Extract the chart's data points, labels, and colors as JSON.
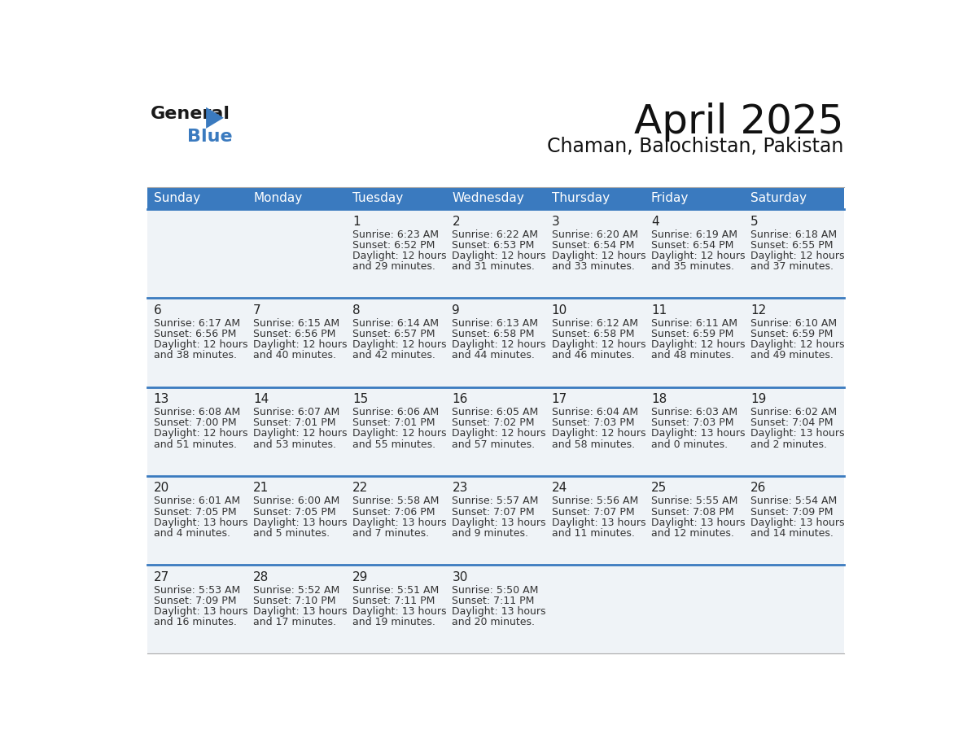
{
  "title": "April 2025",
  "subtitle": "Chaman, Balochistan, Pakistan",
  "header_color": "#3a7abf",
  "header_text_color": "#ffffff",
  "cell_bg": "#eff3f7",
  "border_color": "#3a7abf",
  "row_line_color": "#3a7abf",
  "day_names": [
    "Sunday",
    "Monday",
    "Tuesday",
    "Wednesday",
    "Thursday",
    "Friday",
    "Saturday"
  ],
  "days": [
    {
      "date": 1,
      "col": 2,
      "row": 0,
      "sunrise": "6:23 AM",
      "sunset": "6:52 PM",
      "daylight_h": "12 hours",
      "daylight_m": "29 minutes."
    },
    {
      "date": 2,
      "col": 3,
      "row": 0,
      "sunrise": "6:22 AM",
      "sunset": "6:53 PM",
      "daylight_h": "12 hours",
      "daylight_m": "31 minutes."
    },
    {
      "date": 3,
      "col": 4,
      "row": 0,
      "sunrise": "6:20 AM",
      "sunset": "6:54 PM",
      "daylight_h": "12 hours",
      "daylight_m": "33 minutes."
    },
    {
      "date": 4,
      "col": 5,
      "row": 0,
      "sunrise": "6:19 AM",
      "sunset": "6:54 PM",
      "daylight_h": "12 hours",
      "daylight_m": "35 minutes."
    },
    {
      "date": 5,
      "col": 6,
      "row": 0,
      "sunrise": "6:18 AM",
      "sunset": "6:55 PM",
      "daylight_h": "12 hours",
      "daylight_m": "37 minutes."
    },
    {
      "date": 6,
      "col": 0,
      "row": 1,
      "sunrise": "6:17 AM",
      "sunset": "6:56 PM",
      "daylight_h": "12 hours",
      "daylight_m": "38 minutes."
    },
    {
      "date": 7,
      "col": 1,
      "row": 1,
      "sunrise": "6:15 AM",
      "sunset": "6:56 PM",
      "daylight_h": "12 hours",
      "daylight_m": "40 minutes."
    },
    {
      "date": 8,
      "col": 2,
      "row": 1,
      "sunrise": "6:14 AM",
      "sunset": "6:57 PM",
      "daylight_h": "12 hours",
      "daylight_m": "42 minutes."
    },
    {
      "date": 9,
      "col": 3,
      "row": 1,
      "sunrise": "6:13 AM",
      "sunset": "6:58 PM",
      "daylight_h": "12 hours",
      "daylight_m": "44 minutes."
    },
    {
      "date": 10,
      "col": 4,
      "row": 1,
      "sunrise": "6:12 AM",
      "sunset": "6:58 PM",
      "daylight_h": "12 hours",
      "daylight_m": "46 minutes."
    },
    {
      "date": 11,
      "col": 5,
      "row": 1,
      "sunrise": "6:11 AM",
      "sunset": "6:59 PM",
      "daylight_h": "12 hours",
      "daylight_m": "48 minutes."
    },
    {
      "date": 12,
      "col": 6,
      "row": 1,
      "sunrise": "6:10 AM",
      "sunset": "6:59 PM",
      "daylight_h": "12 hours",
      "daylight_m": "49 minutes."
    },
    {
      "date": 13,
      "col": 0,
      "row": 2,
      "sunrise": "6:08 AM",
      "sunset": "7:00 PM",
      "daylight_h": "12 hours",
      "daylight_m": "51 minutes."
    },
    {
      "date": 14,
      "col": 1,
      "row": 2,
      "sunrise": "6:07 AM",
      "sunset": "7:01 PM",
      "daylight_h": "12 hours",
      "daylight_m": "53 minutes."
    },
    {
      "date": 15,
      "col": 2,
      "row": 2,
      "sunrise": "6:06 AM",
      "sunset": "7:01 PM",
      "daylight_h": "12 hours",
      "daylight_m": "55 minutes."
    },
    {
      "date": 16,
      "col": 3,
      "row": 2,
      "sunrise": "6:05 AM",
      "sunset": "7:02 PM",
      "daylight_h": "12 hours",
      "daylight_m": "57 minutes."
    },
    {
      "date": 17,
      "col": 4,
      "row": 2,
      "sunrise": "6:04 AM",
      "sunset": "7:03 PM",
      "daylight_h": "12 hours",
      "daylight_m": "58 minutes."
    },
    {
      "date": 18,
      "col": 5,
      "row": 2,
      "sunrise": "6:03 AM",
      "sunset": "7:03 PM",
      "daylight_h": "13 hours",
      "daylight_m": "0 minutes."
    },
    {
      "date": 19,
      "col": 6,
      "row": 2,
      "sunrise": "6:02 AM",
      "sunset": "7:04 PM",
      "daylight_h": "13 hours",
      "daylight_m": "2 minutes."
    },
    {
      "date": 20,
      "col": 0,
      "row": 3,
      "sunrise": "6:01 AM",
      "sunset": "7:05 PM",
      "daylight_h": "13 hours",
      "daylight_m": "4 minutes."
    },
    {
      "date": 21,
      "col": 1,
      "row": 3,
      "sunrise": "6:00 AM",
      "sunset": "7:05 PM",
      "daylight_h": "13 hours",
      "daylight_m": "5 minutes."
    },
    {
      "date": 22,
      "col": 2,
      "row": 3,
      "sunrise": "5:58 AM",
      "sunset": "7:06 PM",
      "daylight_h": "13 hours",
      "daylight_m": "7 minutes."
    },
    {
      "date": 23,
      "col": 3,
      "row": 3,
      "sunrise": "5:57 AM",
      "sunset": "7:07 PM",
      "daylight_h": "13 hours",
      "daylight_m": "9 minutes."
    },
    {
      "date": 24,
      "col": 4,
      "row": 3,
      "sunrise": "5:56 AM",
      "sunset": "7:07 PM",
      "daylight_h": "13 hours",
      "daylight_m": "11 minutes."
    },
    {
      "date": 25,
      "col": 5,
      "row": 3,
      "sunrise": "5:55 AM",
      "sunset": "7:08 PM",
      "daylight_h": "13 hours",
      "daylight_m": "12 minutes."
    },
    {
      "date": 26,
      "col": 6,
      "row": 3,
      "sunrise": "5:54 AM",
      "sunset": "7:09 PM",
      "daylight_h": "13 hours",
      "daylight_m": "14 minutes."
    },
    {
      "date": 27,
      "col": 0,
      "row": 4,
      "sunrise": "5:53 AM",
      "sunset": "7:09 PM",
      "daylight_h": "13 hours",
      "daylight_m": "16 minutes."
    },
    {
      "date": 28,
      "col": 1,
      "row": 4,
      "sunrise": "5:52 AM",
      "sunset": "7:10 PM",
      "daylight_h": "13 hours",
      "daylight_m": "17 minutes."
    },
    {
      "date": 29,
      "col": 2,
      "row": 4,
      "sunrise": "5:51 AM",
      "sunset": "7:11 PM",
      "daylight_h": "13 hours",
      "daylight_m": "19 minutes."
    },
    {
      "date": 30,
      "col": 3,
      "row": 4,
      "sunrise": "5:50 AM",
      "sunset": "7:11 PM",
      "daylight_h": "13 hours",
      "daylight_m": "20 minutes."
    }
  ],
  "num_rows": 5,
  "num_cols": 7
}
